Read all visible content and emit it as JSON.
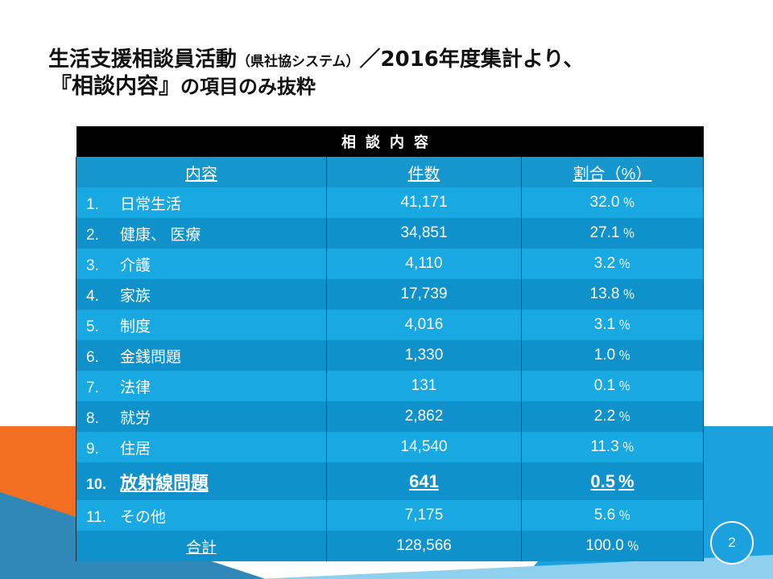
{
  "title": {
    "line1_main": "生活支援相談員活動",
    "line1_paren": "（県社協システム）",
    "line1_tail": "／2016年度集計より、",
    "line2_main": "『相談内容』",
    "line2_rest": "の項目のみ抜粋"
  },
  "table": {
    "caption": "相談内容",
    "headers": [
      "内容",
      "件数",
      "割合（%）"
    ],
    "rows": [
      {
        "index": "1.",
        "label": "日常生活",
        "count": "41,171",
        "pct": "32.0",
        "unit": "％"
      },
      {
        "index": "2.",
        "label": "健康、 医療",
        "count": "34,851",
        "pct": "27.1",
        "unit": "％"
      },
      {
        "index": "3.",
        "label": "介護",
        "count": "4,110",
        "pct": "3.2",
        "unit": "％"
      },
      {
        "index": "4.",
        "label": "家族",
        "count": "17,739",
        "pct": "13.8",
        "unit": "％"
      },
      {
        "index": "5.",
        "label": "制度",
        "count": "4,016",
        "pct": "3.1",
        "unit": "％"
      },
      {
        "index": "6.",
        "label": "金銭問題",
        "count": "1,330",
        "pct": "1.0",
        "unit": "％"
      },
      {
        "index": "7.",
        "label": "法律",
        "count": "131",
        "pct": "0.1",
        "unit": "％"
      },
      {
        "index": "8.",
        "label": "就労",
        "count": "2,862",
        "pct": "2.2",
        "unit": "％"
      },
      {
        "index": "9.",
        "label": "住居",
        "count": "14,540",
        "pct": "11.3",
        "unit": "％"
      },
      {
        "index": "10.",
        "label": "放射線問題",
        "count": "641",
        "pct": "0.5",
        "unit": "%"
      },
      {
        "index": "11.",
        "label": "その他",
        "count": "7,175",
        "pct": "5.6",
        "unit": "％"
      }
    ],
    "total": {
      "label": "合計",
      "count": "128,566",
      "pct": "100.0",
      "unit": "％"
    }
  },
  "page_number": "2",
  "colors": {
    "row_light": "#18a8e2",
    "row_dark": "#0f92cc",
    "caption_bg": "#000000",
    "accent_orange": "#f26f21",
    "accent_blue": "#1ba1dd"
  }
}
